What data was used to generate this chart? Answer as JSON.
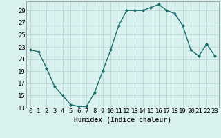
{
  "x": [
    0,
    1,
    2,
    3,
    4,
    5,
    6,
    7,
    8,
    9,
    10,
    11,
    12,
    13,
    14,
    15,
    16,
    17,
    18,
    19,
    20,
    21,
    22,
    23
  ],
  "y": [
    22.5,
    22.2,
    19.5,
    16.5,
    15.0,
    13.5,
    13.2,
    13.2,
    15.5,
    19.0,
    22.5,
    26.5,
    29.0,
    29.0,
    29.0,
    29.5,
    30.0,
    29.0,
    28.5,
    26.5,
    22.5,
    21.5,
    23.5,
    21.5
  ],
  "line_color": "#1a6b6b",
  "marker_color": "#1a6b6b",
  "bg_color": "#d8f0ee",
  "grid_color": "#b8d8d4",
  "xlabel": "Humidex (Indice chaleur)",
  "xlim": [
    -0.5,
    23.5
  ],
  "ylim": [
    13,
    30.5
  ],
  "yticks": [
    13,
    15,
    17,
    19,
    21,
    23,
    25,
    27,
    29
  ],
  "xticks": [
    0,
    1,
    2,
    3,
    4,
    5,
    6,
    7,
    8,
    9,
    10,
    11,
    12,
    13,
    14,
    15,
    16,
    17,
    18,
    19,
    20,
    21,
    22,
    23
  ],
  "xlabel_fontsize": 7.0,
  "tick_fontsize": 6.5
}
